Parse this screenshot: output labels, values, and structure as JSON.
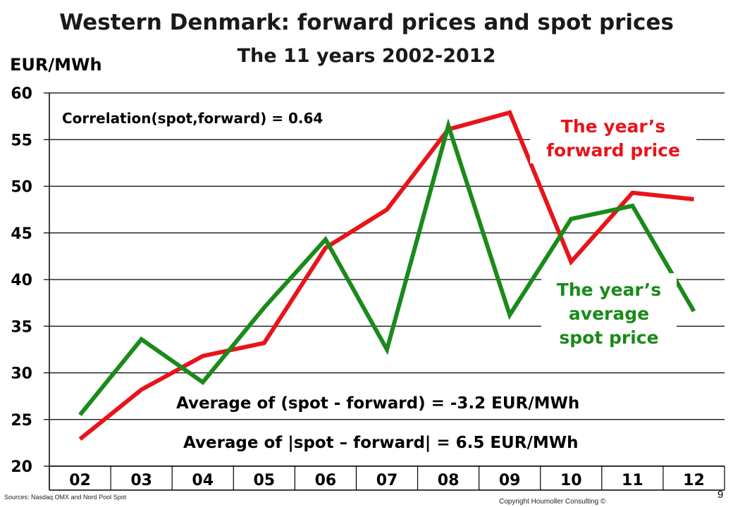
{
  "page": {
    "title": "Western Denmark: forward prices and spot prices",
    "subtitle": "The 11 years 2002-2012",
    "unit": "EUR/MWh",
    "source": "Sources: Nasdaq OMX and Nord Pool Spot",
    "copyright": "Copyright Houmoller Consulting ©",
    "page_number": "9"
  },
  "chart_data": {
    "type": "line",
    "title": "Western Denmark: forward prices and spot prices",
    "subtitle": "The 11 years 2002-2012",
    "ylabel": "EUR/MWh",
    "xlabel": "",
    "ylim": [
      20,
      60
    ],
    "yticks": [
      20,
      25,
      30,
      35,
      40,
      45,
      50,
      55,
      60
    ],
    "grid": true,
    "categories": [
      "02",
      "03",
      "04",
      "05",
      "06",
      "07",
      "08",
      "09",
      "10",
      "11",
      "12"
    ],
    "series": [
      {
        "name": "The year’s forward price",
        "color": "#e8141a",
        "values": [
          22.9,
          28.2,
          31.8,
          33.2,
          43.4,
          47.5,
          56.1,
          57.9,
          41.9,
          49.3,
          48.6
        ]
      },
      {
        "name": "The year’s average spot price",
        "color": "#1a8a1a",
        "values": [
          25.5,
          33.6,
          29.0,
          37.0,
          44.3,
          32.5,
          56.5,
          36.2,
          46.5,
          47.9,
          36.6
        ]
      }
    ],
    "annotations": {
      "correlation": "Correlation(spot,forward)  =  0.64",
      "forward_label": [
        "The year’s",
        "forward price"
      ],
      "spot_label": [
        "The year’s",
        "average",
        "spot price"
      ],
      "avg_diff": "Average of  (spot - forward)   =   -3.2 EUR/MWh",
      "avg_abs_diff": "Average of  |spot – forward|   =   6.5 EUR/MWh"
    }
  }
}
